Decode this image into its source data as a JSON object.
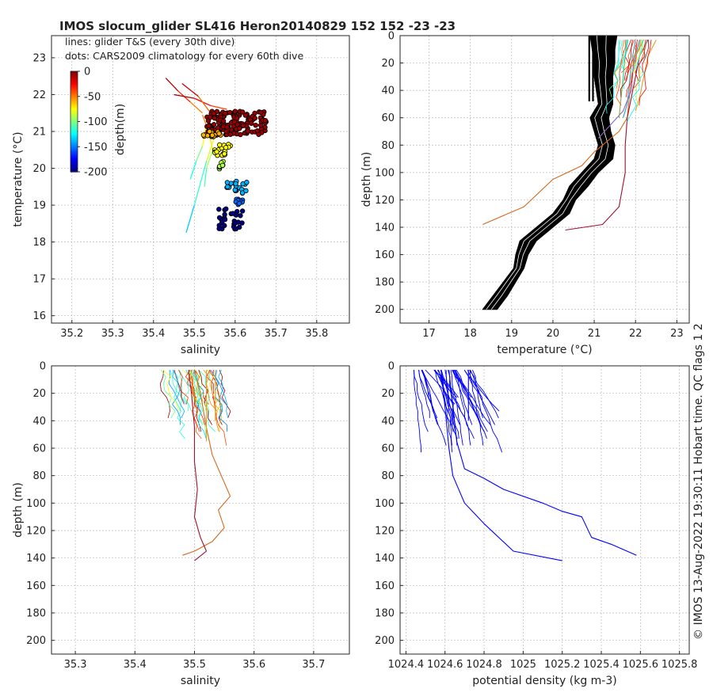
{
  "figure": {
    "title": "IMOS slocum_glider SL416 Heron20140829 152  152  -23  -23",
    "note_lines": "lines: glider T&S (every 30th dive)",
    "note_dots": "dots: CARS2009 climatology for every 60th dive",
    "side_text": "© IMOS 13-Aug-2022 19:30:11 Hobart time. QC flags 1  2"
  },
  "chart_data": [
    {
      "id": "ts",
      "type": "scatter",
      "xlabel": "salinity",
      "ylabel": "temperature (°C)",
      "xlim": [
        35.15,
        35.88
      ],
      "ylim": [
        15.8,
        23.6
      ],
      "xticks": [
        "35.2",
        "35.3",
        "35.4",
        "35.5",
        "35.6",
        "35.7",
        "35.8"
      ],
      "yticks": [
        "16",
        "17",
        "18",
        "19",
        "20",
        "21",
        "22",
        "23"
      ],
      "grid": true,
      "colorbar": {
        "label": "depth(m)",
        "ticks": [
          "0",
          "-50",
          "-100",
          "-150",
          "-200"
        ],
        "range": [
          0,
          -200
        ]
      },
      "line_series": [
        {
          "x": [
            35.43,
            35.46,
            35.49,
            35.52
          ],
          "y": [
            22.45,
            22.1,
            21.8,
            21.5
          ],
          "depth": [
            0,
            -20,
            -40,
            -60
          ]
        },
        {
          "x": [
            35.45,
            35.5,
            35.54,
            35.58
          ],
          "y": [
            22.0,
            21.9,
            21.7,
            21.6
          ],
          "depth": [
            0,
            -15,
            -30,
            -45
          ]
        },
        {
          "x": [
            35.47,
            35.51,
            35.56,
            35.53,
            35.5,
            35.48
          ],
          "y": [
            22.3,
            21.95,
            21.2,
            20.2,
            19.0,
            18.25
          ],
          "depth": [
            0,
            -30,
            -60,
            -100,
            -130,
            -140
          ]
        },
        {
          "x": [
            35.52,
            35.535,
            35.545,
            35.53,
            35.525
          ],
          "y": [
            21.45,
            21.0,
            20.5,
            20.0,
            19.5
          ],
          "depth": [
            -40,
            -60,
            -80,
            -100,
            -120
          ]
        },
        {
          "x": [
            35.53,
            35.52,
            35.505,
            35.49
          ],
          "y": [
            21.2,
            20.6,
            20.2,
            19.7
          ],
          "depth": [
            -60,
            -90,
            -110,
            -130
          ]
        }
      ],
      "point_series": [
        {
          "depth": -5,
          "x_range": [
            35.53,
            35.68
          ],
          "y_range": [
            20.9,
            21.55
          ],
          "count": 140
        },
        {
          "depth": -60,
          "x_range": [
            35.52,
            35.57
          ],
          "y_range": [
            20.85,
            21.0
          ],
          "count": 18
        },
        {
          "depth": -75,
          "x_range": [
            35.55,
            35.59
          ],
          "y_range": [
            20.35,
            20.65
          ],
          "count": 22
        },
        {
          "depth": -90,
          "x_range": [
            35.56,
            35.58
          ],
          "y_range": [
            19.95,
            20.2
          ],
          "count": 10
        },
        {
          "depth": -140,
          "x_range": [
            35.58,
            35.63
          ],
          "y_range": [
            19.3,
            19.7
          ],
          "count": 22
        },
        {
          "depth": -155,
          "x_range": [
            35.6,
            35.62
          ],
          "y_range": [
            19.0,
            19.2
          ],
          "count": 10
        },
        {
          "depth": -200,
          "x_range": [
            35.56,
            35.62
          ],
          "y_range": [
            18.35,
            18.9
          ],
          "count": 28
        }
      ]
    },
    {
      "id": "temp",
      "type": "line",
      "xlabel": "temperature (°C)",
      "ylabel": "depth (m)",
      "xlim": [
        16.3,
        23.3
      ],
      "ylim": [
        0,
        210
      ],
      "y_inverted": true,
      "xticks": [
        "17",
        "18",
        "19",
        "20",
        "21",
        "22",
        "23"
      ],
      "yticks": [
        "0",
        "20",
        "40",
        "60",
        "80",
        "100",
        "120",
        "140",
        "160",
        "180",
        "200"
      ],
      "grid": true,
      "climatology_band": {
        "depth": [
          0,
          10,
          20,
          30,
          40,
          50,
          60,
          70,
          80,
          90,
          100,
          110,
          120,
          130,
          140,
          150,
          160,
          170,
          180,
          190,
          200
        ],
        "temp_left": [
          20.9,
          20.95,
          21.0,
          21.0,
          21.05,
          21.1,
          20.9,
          21.0,
          21.1,
          21.0,
          20.7,
          20.4,
          20.25,
          20.0,
          19.6,
          19.2,
          19.1,
          19.05,
          18.8,
          18.55,
          18.3
        ],
        "temp_right": [
          21.55,
          21.5,
          21.5,
          21.45,
          21.45,
          21.45,
          21.35,
          21.4,
          21.5,
          21.45,
          21.1,
          20.85,
          20.55,
          20.4,
          20.0,
          19.6,
          19.4,
          19.3,
          19.1,
          18.9,
          18.65
        ]
      },
      "glider_profiles": [
        {
          "temp": [
            22.2,
            22.0,
            21.9,
            21.85,
            21.8,
            21.6,
            21.0,
            20.7,
            20.0,
            19.3,
            18.3
          ],
          "depth": [
            3,
            15,
            30,
            45,
            60,
            70,
            85,
            95,
            105,
            125,
            138
          ],
          "color": "#d2691e"
        },
        {
          "temp": [
            22.3,
            22.1,
            22.0,
            21.9,
            21.8,
            21.75,
            21.75,
            21.6,
            21.2,
            20.3
          ],
          "depth": [
            3,
            15,
            30,
            45,
            60,
            80,
            100,
            125,
            138,
            142
          ],
          "color": "#a01030"
        },
        {
          "temp": [
            22.1,
            21.95,
            21.9,
            21.7,
            21.4,
            21.1
          ],
          "depth": [
            3,
            20,
            40,
            55,
            65,
            75
          ],
          "color": "#9060c0"
        },
        {
          "temp": [
            22.0,
            21.9,
            21.85,
            21.8,
            21.7
          ],
          "depth": [
            3,
            20,
            35,
            50,
            60
          ],
          "color": "#30a0c0"
        },
        {
          "temp": [
            21.8,
            21.75,
            21.7,
            21.65,
            21.6
          ],
          "depth": [
            3,
            15,
            30,
            45,
            60
          ],
          "color": "#80b040"
        },
        {
          "temp": [
            22.5,
            22.3,
            22.2,
            22.1,
            22.0
          ],
          "depth": [
            3,
            15,
            30,
            45,
            55
          ],
          "color": "#e0a020"
        }
      ]
    },
    {
      "id": "sal",
      "type": "line",
      "xlabel": "salinity",
      "ylabel": "depth (m)",
      "xlim": [
        35.26,
        35.76
      ],
      "ylim": [
        0,
        210
      ],
      "y_inverted": true,
      "xticks": [
        "35.3",
        "35.4",
        "35.5",
        "35.6",
        "35.7"
      ],
      "yticks": [
        "0",
        "20",
        "40",
        "60",
        "80",
        "100",
        "120",
        "140",
        "160",
        "180",
        "200"
      ],
      "grid": true,
      "glider_profiles": [
        {
          "sal": [
            35.5,
            35.51,
            35.52,
            35.53,
            35.55,
            35.56,
            35.54,
            35.55,
            35.53,
            35.5,
            35.48
          ],
          "depth": [
            3,
            20,
            45,
            65,
            85,
            95,
            105,
            118,
            128,
            135,
            138
          ],
          "color": "#d2691e"
        },
        {
          "sal": [
            35.49,
            35.495,
            35.5,
            35.5,
            35.505,
            35.5,
            35.51,
            35.52,
            35.5
          ],
          "depth": [
            3,
            20,
            45,
            70,
            90,
            110,
            125,
            135,
            142
          ],
          "color": "#a01030"
        },
        {
          "sal": [
            35.52,
            35.52,
            35.52,
            35.52
          ],
          "depth": [
            3,
            20,
            40,
            55
          ],
          "color": "#e0a020"
        },
        {
          "sal": [
            35.535,
            35.535,
            35.535
          ],
          "depth": [
            3,
            20,
            40
          ],
          "color": "#e0a020"
        }
      ]
    },
    {
      "id": "dens",
      "type": "line",
      "xlabel": "potential density (kg m-3)",
      "ylabel": "",
      "xlim": [
        1024.37,
        1025.85
      ],
      "ylim": [
        0,
        210
      ],
      "y_inverted": true,
      "xticks": [
        "1024.4",
        "1024.6",
        "1024.8",
        "1025",
        "1025.2",
        "1025.4",
        "1025.6",
        "1025.8"
      ],
      "yticks": [
        "0",
        "20",
        "40",
        "60",
        "80",
        "100",
        "120",
        "140",
        "160",
        "180",
        "200"
      ],
      "grid": true,
      "glider_profiles": [
        {
          "dens": [
            1024.62,
            1024.64,
            1024.66,
            1024.7,
            1024.8,
            1024.9,
            1025.1,
            1025.2,
            1025.3,
            1025.35,
            1025.45,
            1025.58
          ],
          "depth": [
            3,
            30,
            55,
            75,
            82,
            90,
            100,
            106,
            110,
            125,
            130,
            138
          ],
          "color": "#0000ff"
        },
        {
          "dens": [
            1024.58,
            1024.6,
            1024.62,
            1024.64,
            1024.7,
            1024.8,
            1024.95,
            1025.2
          ],
          "depth": [
            3,
            30,
            60,
            80,
            100,
            115,
            135,
            142
          ],
          "color": "#0000ff"
        },
        {
          "dens": [
            1024.72,
            1024.72,
            1024.72
          ],
          "depth": [
            3,
            20,
            40
          ],
          "color": "#0000ff"
        }
      ]
    }
  ]
}
